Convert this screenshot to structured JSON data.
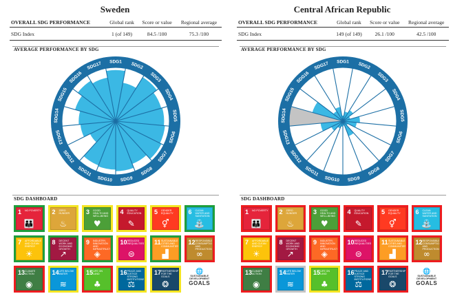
{
  "colors": {
    "green": "#1e9e3c",
    "yellow": "#f4e521",
    "red": "#ee1c1f",
    "grey": "#c4c4c4",
    "wheel_ring": "#1c6fa5",
    "bar": "#3bb8e4"
  },
  "labels": {
    "overall": "OVERALL SDG PERFORMANCE",
    "global_rank": "Global rank",
    "score": "Score or value",
    "regional": "Regional average",
    "sdg_index": "SDG Index",
    "avg_perf": "AVERAGE PERFORMANCE BY SDG",
    "dashboard": "SDG DASHBOARD"
  },
  "goals": [
    {
      "n": "1",
      "label": "NO POVERTY",
      "color": "#e5243b",
      "icon": "people-icon",
      "glyph": "👪"
    },
    {
      "n": "2",
      "label": "ZERO HUNGER",
      "color": "#dda63a",
      "icon": "bowl-icon",
      "glyph": "♨"
    },
    {
      "n": "3",
      "label": "GOOD HEALTH AND WELL-BEING",
      "color": "#4c9f38",
      "icon": "heartbeat-icon",
      "glyph": "♥"
    },
    {
      "n": "4",
      "label": "QUALITY EDUCATION",
      "color": "#c5192d",
      "icon": "book-icon",
      "glyph": "✎"
    },
    {
      "n": "5",
      "label": "GENDER EQUALITY",
      "color": "#ff3a21",
      "icon": "gender-icon",
      "glyph": "⚥"
    },
    {
      "n": "6",
      "label": "CLEAN WATER AND SANITATION",
      "color": "#26bde2",
      "icon": "water-icon",
      "glyph": "⛲"
    },
    {
      "n": "7",
      "label": "AFFORDABLE AND CLEAN ENERGY",
      "color": "#fcc30b",
      "icon": "sun-icon",
      "glyph": "☀"
    },
    {
      "n": "8",
      "label": "DECENT WORK AND ECONOMIC GROWTH",
      "color": "#a21942",
      "icon": "chart-up-icon",
      "glyph": "↗"
    },
    {
      "n": "9",
      "label": "INDUSTRY, INNOVATION AND INFRASTRUCTURE",
      "color": "#fd6925",
      "icon": "cubes-icon",
      "glyph": "◈"
    },
    {
      "n": "10",
      "label": "REDUCED INEQUALITIES",
      "color": "#dd1367",
      "icon": "equal-icon",
      "glyph": "⊜"
    },
    {
      "n": "11",
      "label": "SUSTAINABLE CITIES AND COMMUNITIES",
      "color": "#fd9d24",
      "icon": "city-icon",
      "glyph": "▟"
    },
    {
      "n": "12",
      "label": "RESPONSIBLE CONSUMPTION AND PRODUCTION",
      "color": "#bf8b2e",
      "icon": "infinity-icon",
      "glyph": "∞"
    },
    {
      "n": "13",
      "label": "CLIMATE ACTION",
      "color": "#3f7e44",
      "icon": "eye-globe-icon",
      "glyph": "◉"
    },
    {
      "n": "14",
      "label": "LIFE BELOW WATER",
      "color": "#0a97d9",
      "icon": "fish-icon",
      "glyph": "≋"
    },
    {
      "n": "15",
      "label": "LIFE ON LAND",
      "color": "#56c02b",
      "icon": "tree-icon",
      "glyph": "♣"
    },
    {
      "n": "16",
      "label": "PEACE AND JUSTICE STRONG INSTITUTIONS",
      "color": "#00689d",
      "icon": "dove-icon",
      "glyph": "⚖"
    },
    {
      "n": "17",
      "label": "PARTNERSHIPS FOR THE GOALS",
      "color": "#19486a",
      "icon": "rings-icon",
      "glyph": "❂"
    }
  ],
  "sdg_goals_logo": {
    "line1": "SUSTAINABLE",
    "line2": "DEVELOPMENT",
    "line3": "GOALS",
    "icon": "un-globe-icon"
  },
  "countries": [
    {
      "name": "Sweden",
      "rank": "1 (of 149)",
      "score": "84.5 /100",
      "regional": "75.3 /100",
      "dashboard": [
        "green",
        "yellow",
        "yellow",
        "yellow",
        "yellow",
        "green",
        "green",
        "green",
        "green",
        "yellow",
        "green",
        "red",
        "red",
        "yellow",
        "red",
        "yellow",
        "yellow"
      ],
      "chart_data": {
        "type": "radial-bar",
        "categories": [
          "SDG1",
          "SDG2",
          "SDG3",
          "SDG4",
          "SDG5",
          "SDG6",
          "SDG7",
          "SDG8",
          "SDG9",
          "SDG10",
          "SDG11",
          "SDG12",
          "SDG13",
          "SDG14",
          "SDG15",
          "SDG16",
          "SDG17"
        ],
        "values": [
          95,
          72,
          96,
          88,
          90,
          92,
          95,
          85,
          93,
          90,
          88,
          52,
          65,
          68,
          78,
          88,
          82
        ],
        "ylim": [
          0,
          100
        ]
      }
    },
    {
      "name": "Central African Republic",
      "rank": "149 (of 149)",
      "score": "26.1 /100",
      "regional": "42.5 /100",
      "dashboard": [
        "red",
        "red",
        "red",
        "red",
        "red",
        "red",
        "red",
        "red",
        "red",
        "red",
        "red",
        "red",
        "red",
        "grey",
        "yellow",
        "red",
        "red"
      ],
      "chart_data": {
        "type": "radial-bar",
        "categories": [
          "SDG1",
          "SDG2",
          "SDG3",
          "SDG4",
          "SDG5",
          "SDG6",
          "SDG7",
          "SDG8",
          "SDG9",
          "SDG10",
          "SDG11",
          "SDG12",
          "SDG13",
          "SDG14",
          "SDG15",
          "SDG16",
          "SDG17"
        ],
        "values": [
          8,
          16,
          22,
          12,
          30,
          24,
          8,
          28,
          6,
          8,
          12,
          22,
          40,
          0,
          58,
          20,
          25
        ],
        "missing": [
          "SDG14"
        ],
        "ylim": [
          0,
          100
        ]
      }
    }
  ]
}
